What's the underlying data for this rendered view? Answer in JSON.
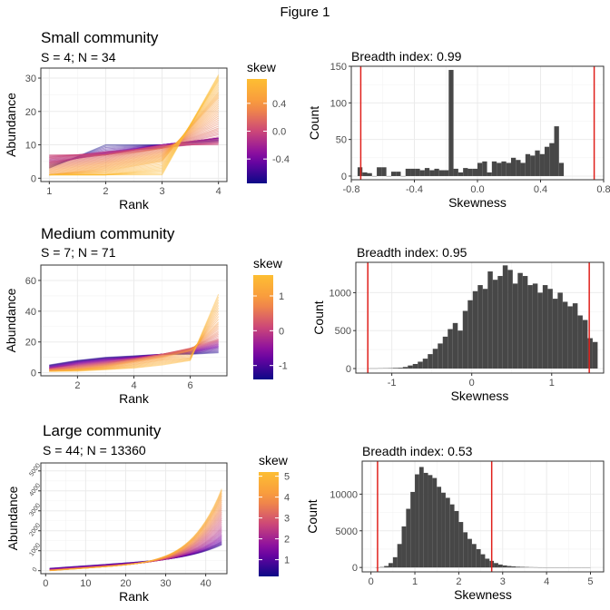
{
  "figure_title": "Figure 1",
  "colors": {
    "bar": "#474747",
    "vline": "#e0201b",
    "grid": "#ebebeb",
    "border": "#333333",
    "viridis_low": "#0d0887",
    "viridis_high": "#fca636"
  },
  "chart_data": [
    {
      "type": "line",
      "panel": "small-lines",
      "title": "Small community",
      "subtitle": "S = 4; N = 34",
      "xlabel": "Rank",
      "ylabel": "Abundance",
      "xlim": [
        0.85,
        4.15
      ],
      "ylim": [
        -1,
        33
      ],
      "x_ticks": [
        1,
        2,
        3,
        4
      ],
      "y_ticks": [
        0,
        10,
        20,
        30
      ],
      "legend_title": "skew",
      "legend_ticks": [
        0.4,
        0.0,
        -0.4
      ],
      "legend_range": [
        -0.75,
        0.75
      ],
      "ranks": 4,
      "profiles": [
        {
          "skew": -0.74,
          "values": [
            3,
            10,
            10,
            11
          ]
        },
        {
          "skew": -0.5,
          "values": [
            4,
            8,
            10,
            12
          ]
        },
        {
          "skew": -0.3,
          "values": [
            5,
            7,
            10,
            12
          ]
        },
        {
          "skew": -0.1,
          "values": [
            6,
            8,
            9,
            11
          ]
        },
        {
          "skew": 0.0,
          "values": [
            7,
            7,
            10,
            10
          ]
        },
        {
          "skew": 0.1,
          "values": [
            5,
            7,
            9,
            13
          ]
        },
        {
          "skew": 0.2,
          "values": [
            4,
            6,
            9,
            15
          ]
        },
        {
          "skew": 0.3,
          "values": [
            3,
            5,
            8,
            18
          ]
        },
        {
          "skew": 0.4,
          "values": [
            2,
            4,
            7,
            21
          ]
        },
        {
          "skew": 0.5,
          "values": [
            1,
            3,
            6,
            24
          ]
        },
        {
          "skew": 0.6,
          "values": [
            1,
            2,
            5,
            26
          ]
        },
        {
          "skew": 0.7,
          "values": [
            1,
            1,
            3,
            29
          ]
        },
        {
          "skew": 0.74,
          "values": [
            1,
            1,
            1,
            31
          ]
        }
      ]
    },
    {
      "type": "bar",
      "panel": "small-hist",
      "title": "Breadth index: 0.99",
      "xlabel": "Skewness",
      "ylabel": "Count",
      "xlim": [
        -0.8,
        0.8
      ],
      "ylim": [
        -5,
        150
      ],
      "x_ticks": [
        "-0.8",
        "-0.4",
        "0.0",
        "0.4",
        "0.8"
      ],
      "x_tick_values": [
        -0.8,
        -0.4,
        0.0,
        0.4,
        0.8
      ],
      "y_ticks": [
        0,
        50,
        100,
        150
      ],
      "bin_start": -0.76,
      "bin_width": 0.0304,
      "values": [
        12,
        5,
        4,
        0,
        12,
        12,
        0,
        6,
        6,
        0,
        10,
        10,
        10,
        8,
        11,
        8,
        10,
        8,
        8,
        145,
        10,
        5,
        11,
        10,
        10,
        18,
        20,
        5,
        20,
        18,
        20,
        18,
        25,
        22,
        18,
        30,
        28,
        35,
        30,
        40,
        45,
        68,
        18
      ],
      "vlines": [
        -0.74,
        0.74
      ]
    },
    {
      "type": "line",
      "panel": "medium-lines",
      "title": "Medium community",
      "subtitle": "S = 7; N = 71",
      "xlabel": "Rank",
      "ylabel": "Abundance",
      "xlim": [
        0.7,
        7.3
      ],
      "ylim": [
        -2,
        70
      ],
      "x_ticks": [
        2,
        4,
        6
      ],
      "y_ticks": [
        0,
        20,
        40,
        60
      ],
      "legend_title": "skew",
      "legend_ticks": [
        1,
        0,
        -1
      ],
      "legend_range": [
        -1.4,
        1.6
      ],
      "ranks": 7,
      "profiles": [
        {
          "skew": -1.3,
          "values": [
            5,
            8,
            10,
            11,
            12,
            12,
            13
          ]
        },
        {
          "skew": -0.9,
          "values": [
            4,
            7,
            9,
            10,
            12,
            13,
            16
          ]
        },
        {
          "skew": -0.5,
          "values": [
            3,
            6,
            8,
            10,
            12,
            14,
            18
          ]
        },
        {
          "skew": -0.1,
          "values": [
            3,
            5,
            7,
            9,
            12,
            15,
            20
          ]
        },
        {
          "skew": 0.3,
          "values": [
            2,
            4,
            6,
            9,
            12,
            16,
            22
          ]
        },
        {
          "skew": 0.6,
          "values": [
            2,
            3,
            5,
            8,
            11,
            15,
            27
          ]
        },
        {
          "skew": 0.9,
          "values": [
            1,
            2,
            4,
            7,
            10,
            14,
            33
          ]
        },
        {
          "skew": 1.2,
          "values": [
            1,
            2,
            3,
            5,
            8,
            10,
            42
          ]
        },
        {
          "skew": 1.45,
          "values": [
            1,
            1,
            2,
            3,
            5,
            8,
            51
          ]
        }
      ]
    },
    {
      "type": "bar",
      "panel": "medium-hist",
      "title": "Breadth index: 0.95",
      "xlabel": "Skewness",
      "ylabel": "Count",
      "xlim": [
        -1.45,
        1.65
      ],
      "ylim": [
        -60,
        1400
      ],
      "x_ticks": [
        "-1",
        "0",
        "1"
      ],
      "x_tick_values": [
        -1,
        0,
        1
      ],
      "y_ticks": [
        0,
        500,
        1000
      ],
      "bin_start": -1.3,
      "bin_width": 0.0625,
      "values": [
        2,
        2,
        3,
        4,
        5,
        8,
        10,
        20,
        40,
        60,
        90,
        130,
        190,
        260,
        330,
        420,
        520,
        600,
        500,
        760,
        900,
        1020,
        1100,
        1050,
        1280,
        1170,
        1220,
        1360,
        1300,
        1120,
        1260,
        1220,
        1100,
        1120,
        1000,
        1100,
        1050,
        920,
        1000,
        880,
        820,
        860,
        700,
        640,
        400,
        350
      ],
      "vlines": [
        -1.3,
        1.47
      ]
    },
    {
      "type": "line",
      "panel": "large-lines",
      "title": "Large community",
      "subtitle": "S = 44; N = 13360",
      "xlabel": "Rank",
      "ylabel": "Abundance",
      "xlim": [
        -1.2,
        45.3
      ],
      "ylim": [
        -150,
        5400
      ],
      "x_ticks": [
        0,
        10,
        20,
        30,
        40
      ],
      "y_ticks": [
        0,
        1000,
        2000,
        3000,
        4000,
        5000
      ],
      "legend_title": "skew",
      "legend_ticks": [
        5,
        4,
        3,
        2,
        1
      ],
      "legend_range": [
        0.2,
        5.2
      ],
      "ranks": 44,
      "profiles": [
        {
          "skew": 0.6,
          "base": 120,
          "top": 700
        },
        {
          "skew": 1.2,
          "base": 90,
          "top": 900
        },
        {
          "skew": 1.8,
          "base": 60,
          "top": 1200
        },
        {
          "skew": 2.4,
          "base": 40,
          "top": 1600
        },
        {
          "skew": 3.0,
          "base": 25,
          "top": 2100
        },
        {
          "skew": 3.6,
          "base": 15,
          "top": 2600
        },
        {
          "skew": 4.2,
          "base": 10,
          "top": 3100
        },
        {
          "skew": 4.8,
          "base": 5,
          "top": 3500
        }
      ]
    },
    {
      "type": "bar",
      "panel": "large-hist",
      "title": "Breadth index: 0.53",
      "xlabel": "Skewness",
      "ylabel": "Count",
      "xlim": [
        -0.2,
        5.3
      ],
      "ylim": [
        -600,
        14500
      ],
      "x_ticks": [
        "0",
        "1",
        "2",
        "3",
        "4",
        "5"
      ],
      "x_tick_values": [
        0,
        1,
        2,
        3,
        4,
        5
      ],
      "y_ticks": [
        0,
        5000,
        10000
      ],
      "bin_start": 0.1,
      "bin_width": 0.1,
      "values": [
        20,
        60,
        200,
        600,
        1400,
        3200,
        5600,
        8000,
        10300,
        12700,
        13700,
        12900,
        12600,
        12200,
        11000,
        10200,
        9500,
        8600,
        7700,
        6200,
        4800,
        3900,
        3200,
        2500,
        1800,
        1200,
        900,
        600,
        400,
        280,
        200,
        150,
        100,
        80,
        60,
        40,
        30,
        20,
        15,
        10,
        8,
        6,
        5,
        4,
        3,
        2,
        2,
        1,
        1
      ],
      "vlines": [
        0.15,
        2.75
      ]
    }
  ]
}
